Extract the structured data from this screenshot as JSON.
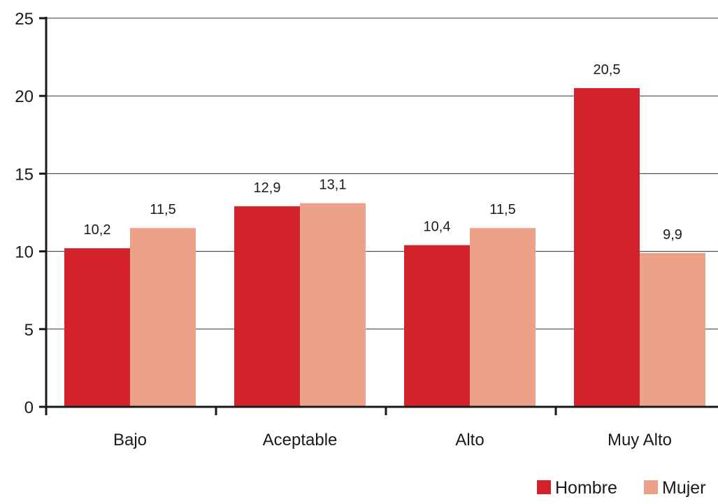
{
  "chart_data": {
    "type": "bar",
    "categories": [
      "Bajo",
      "Aceptable",
      "Alto",
      "Muy Alto"
    ],
    "series": [
      {
        "name": "Hombre",
        "color": "#d2232a",
        "values": [
          10.2,
          12.9,
          10.4,
          20.5
        ],
        "labels": [
          "10,2",
          "12,9",
          "10,4",
          "20,5"
        ]
      },
      {
        "name": "Mujer",
        "color": "#eca189",
        "values": [
          11.5,
          13.1,
          11.5,
          9.9
        ],
        "labels": [
          "11,5",
          "13,1",
          "11,5",
          "9,9"
        ]
      }
    ],
    "ylim": [
      0,
      25
    ],
    "yticks": [
      0,
      5,
      10,
      15,
      20,
      25
    ],
    "ytick_labels": [
      "0",
      "5",
      "10",
      "15",
      "20",
      "25"
    ],
    "grid": true,
    "legend": "bottom-right",
    "title": "",
    "xlabel": "",
    "ylabel": ""
  },
  "colors": {
    "axis": "#1a1a1a",
    "grid": "#333333"
  }
}
